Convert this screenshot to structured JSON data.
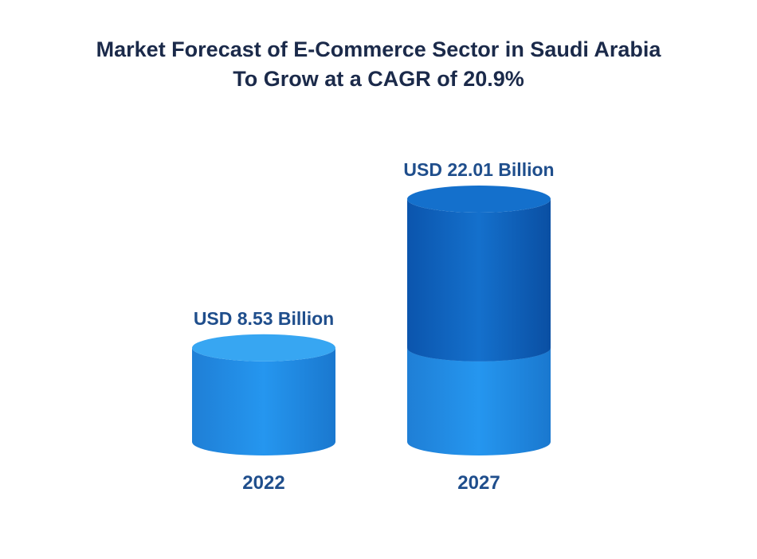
{
  "chart_data": {
    "type": "bar",
    "title_lines": [
      "Market Forecast of E-Commerce Sector in Saudi Arabia",
      "To Grow at a CAGR of 20.9%"
    ],
    "categories": [
      "2022",
      "2027"
    ],
    "values": [
      8.53,
      22.01
    ],
    "value_labels": [
      "USD 8.53 Billion",
      "USD 22.01 Billion"
    ],
    "xlabel": "",
    "ylabel": "",
    "grid": false,
    "legend": "none"
  },
  "colors": {
    "title": "#1b2a4a",
    "label": "#1f4e8c",
    "base_top": "#37a6f2",
    "base_left": "#1f7fd6",
    "base_mid": "#2596ef",
    "base_right": "#1a78cf",
    "growth_left": "#0b55ad",
    "growth_mid": "#1470cc",
    "growth_right": "#0a4fa3"
  }
}
